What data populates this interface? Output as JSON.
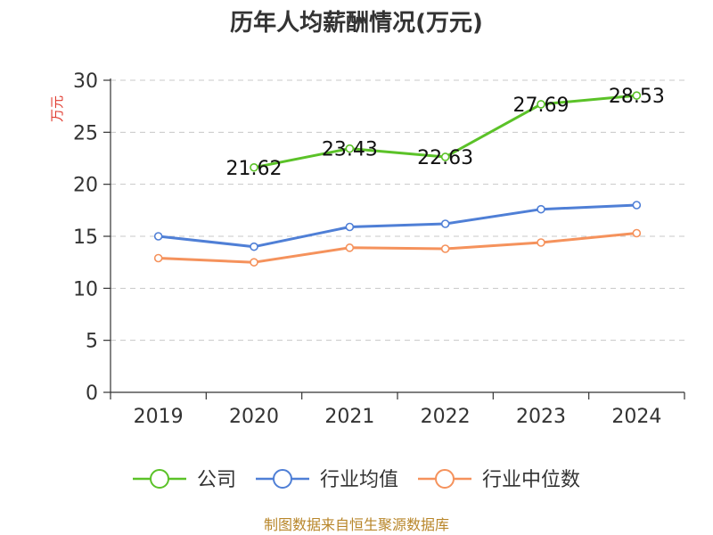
{
  "chart_data": {
    "type": "line",
    "title": "历年人均薪酬情况(万元)",
    "ylabel": "万元",
    "xlabel": "",
    "categories": [
      "2019",
      "2020",
      "2021",
      "2022",
      "2023",
      "2024"
    ],
    "ylim": [
      0,
      30
    ],
    "yticks": [
      0,
      5,
      10,
      15,
      20,
      25,
      30
    ],
    "grid": true,
    "legend_position": "bottom",
    "series": [
      {
        "name": "公司",
        "color": "#5bc228",
        "values": [
          null,
          21.62,
          23.43,
          22.63,
          27.69,
          28.53
        ],
        "show_labels": true
      },
      {
        "name": "行业均值",
        "color": "#4f7fd6",
        "values": [
          15.0,
          14.0,
          15.9,
          16.2,
          17.6,
          18.0
        ],
        "show_labels": false
      },
      {
        "name": "行业中位数",
        "color": "#f5925c",
        "values": [
          12.9,
          12.5,
          13.9,
          13.8,
          14.4,
          15.3
        ],
        "show_labels": false
      }
    ]
  },
  "source": "制图数据来自恒生聚源数据库"
}
